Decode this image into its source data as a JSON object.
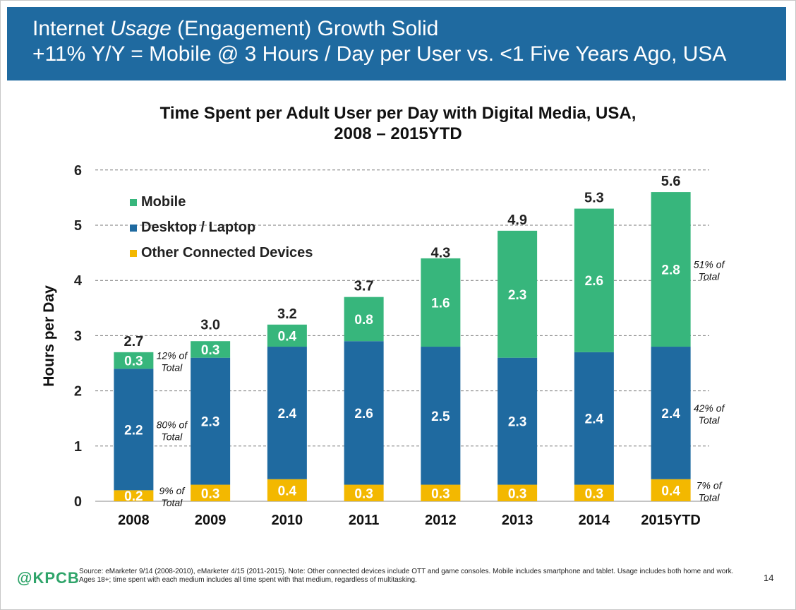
{
  "banner": {
    "title_pre": "Internet ",
    "title_em": "Usage",
    "title_post": " (Engagement) Growth Solid",
    "subtitle": "+11% Y/Y = Mobile @ 3 Hours / Day per User vs. <1  Five Years Ago, USA"
  },
  "colors": {
    "banner": "#1f6aa0",
    "mobile": "#37b67c",
    "desktop": "#1f6aa0",
    "other": "#f3b800"
  },
  "chart_data": {
    "type": "bar",
    "stacked": true,
    "title": [
      "Time Spent per Adult User per Day with Digital Media, USA,",
      "2008 – 2015YTD"
    ],
    "ylabel": "Hours per Day",
    "xlabel": "",
    "ylim": [
      0,
      6
    ],
    "yticks": [
      "0",
      "1",
      "2",
      "3",
      "4",
      "5",
      "6"
    ],
    "grid": true,
    "legend_position": "top-left",
    "categories": [
      "2008",
      "2009",
      "2010",
      "2011",
      "2012",
      "2013",
      "2014",
      "2015YTD"
    ],
    "series": [
      {
        "name": "Other Connected Devices",
        "color": "#f3b800",
        "values": [
          0.2,
          0.3,
          0.4,
          0.3,
          0.3,
          0.3,
          0.3,
          0.4
        ],
        "labels": [
          "0.2",
          "0.3",
          "0.4",
          "0.3",
          "0.3",
          "0.3",
          "0.3",
          "0.4"
        ]
      },
      {
        "name": "Desktop / Laptop",
        "color": "#1f6aa0",
        "values": [
          2.2,
          2.3,
          2.4,
          2.6,
          2.5,
          2.3,
          2.4,
          2.4
        ],
        "labels": [
          "2.2",
          "2.3",
          "2.4",
          "2.6",
          "2.5",
          "2.3",
          "2.4",
          "2.4"
        ]
      },
      {
        "name": "Mobile",
        "color": "#37b67c",
        "values": [
          0.3,
          0.3,
          0.4,
          0.8,
          1.6,
          2.3,
          2.6,
          2.8
        ],
        "labels": [
          "0.3",
          "0.3",
          "0.4",
          "0.8",
          "1.6",
          "2.3",
          "2.6",
          "2.8"
        ]
      }
    ],
    "legend_order": [
      "Mobile",
      "Desktop / Laptop",
      "Other Connected Devices"
    ],
    "totals": [
      2.7,
      3.0,
      3.2,
      3.7,
      4.3,
      4.9,
      5.3,
      5.6
    ],
    "total_labels": [
      "2.7",
      "3.0",
      "3.2",
      "3.7",
      "4.3",
      "4.9",
      "5.3",
      "5.6"
    ],
    "annotations": [
      {
        "lines": [
          "12% of",
          "Total"
        ],
        "bar": "2008",
        "segment": "Mobile",
        "side": "right"
      },
      {
        "lines": [
          "80% of",
          "Total"
        ],
        "bar": "2008",
        "segment": "Desktop / Laptop",
        "side": "right"
      },
      {
        "lines": [
          "9% of",
          "Total"
        ],
        "bar": "2008",
        "segment": "Other Connected Devices",
        "side": "right"
      },
      {
        "lines": [
          "51% of",
          "Total"
        ],
        "bar": "2015YTD",
        "segment": "Mobile",
        "side": "right"
      },
      {
        "lines": [
          "42% of",
          "Total"
        ],
        "bar": "2015YTD",
        "segment": "Desktop / Laptop",
        "side": "right"
      },
      {
        "lines": [
          "7% of",
          "Total"
        ],
        "bar": "2015YTD",
        "segment": "Other Connected Devices",
        "side": "right"
      }
    ]
  },
  "footer": {
    "logo": "@KPCB",
    "source": "Source: eMarketer 9/14 (2008-2010), eMarketer 4/15 (2011-2015). Note: Other connected devices include OTT and game consoles. Mobile includes smartphone and tablet. Usage includes both home and work. Ages 18+; time spent with each medium includes all time spent with that medium, regardless of multitasking.",
    "page": "14"
  }
}
